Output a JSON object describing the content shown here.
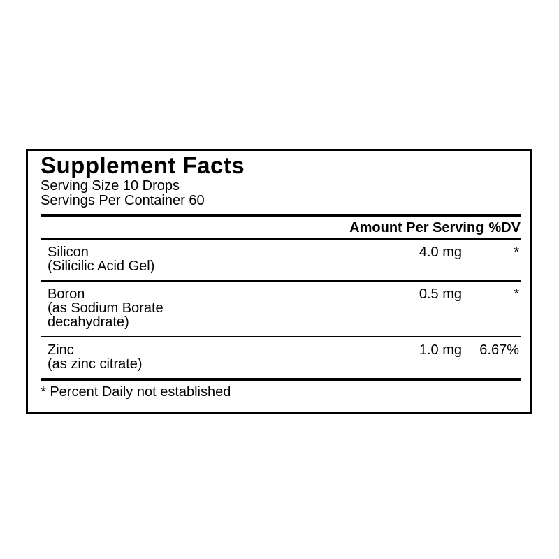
{
  "label": {
    "title": "Supplement Facts",
    "serving_size": "Serving Size 10 Drops",
    "servings_per_container": "Servings Per Container 60",
    "header": {
      "amount_label": "Amount Per Serving",
      "dv_label": "%DV"
    },
    "rows": [
      {
        "name": "Silicon",
        "details": [
          "(Silicilic Acid Gel)"
        ],
        "amount": "4.0 mg",
        "dv": "*"
      },
      {
        "name": "Boron",
        "details": [
          "(as Sodium Borate",
          "decahydrate)"
        ],
        "amount": "0.5 mg",
        "dv": "*"
      },
      {
        "name": "Zinc",
        "details": [
          "(as zinc citrate)"
        ],
        "amount": "1.0 mg",
        "dv": "6.67%"
      }
    ],
    "footnote": "* Percent Daily not established",
    "colors": {
      "text": "#000000",
      "background": "#ffffff",
      "border": "#000000"
    }
  }
}
